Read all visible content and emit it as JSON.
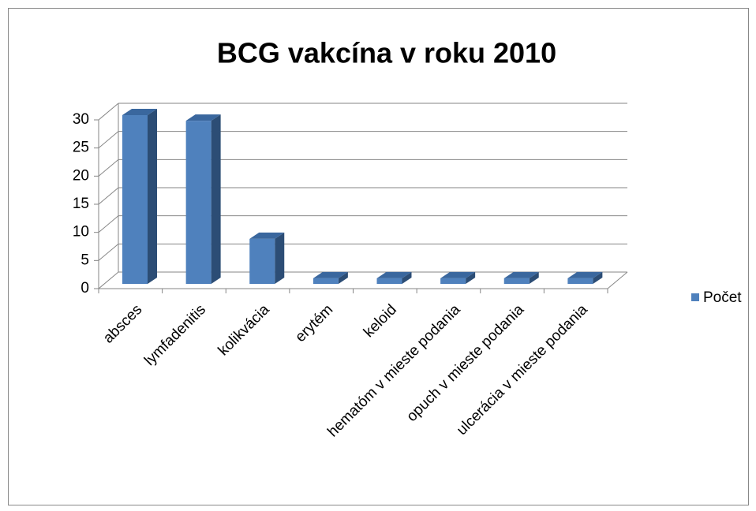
{
  "chart_data": {
    "type": "bar",
    "title": "BCG vakcína v roku 2010",
    "categories": [
      "absces",
      "lymfadenitis",
      "kolikvácia",
      "erytém",
      "keloid",
      "hematóm v mieste podania",
      "opuch v mieste podania",
      "ulcerácia v mieste podania"
    ],
    "series": [
      {
        "name": "Počet",
        "color": "#4f81bd",
        "values": [
          30,
          29,
          8,
          1,
          1,
          1,
          1,
          1
        ]
      }
    ],
    "ylim": [
      0,
      30
    ],
    "yticks": [
      0,
      5,
      10,
      15,
      20,
      25,
      30
    ],
    "grid": true,
    "legend": "right"
  }
}
